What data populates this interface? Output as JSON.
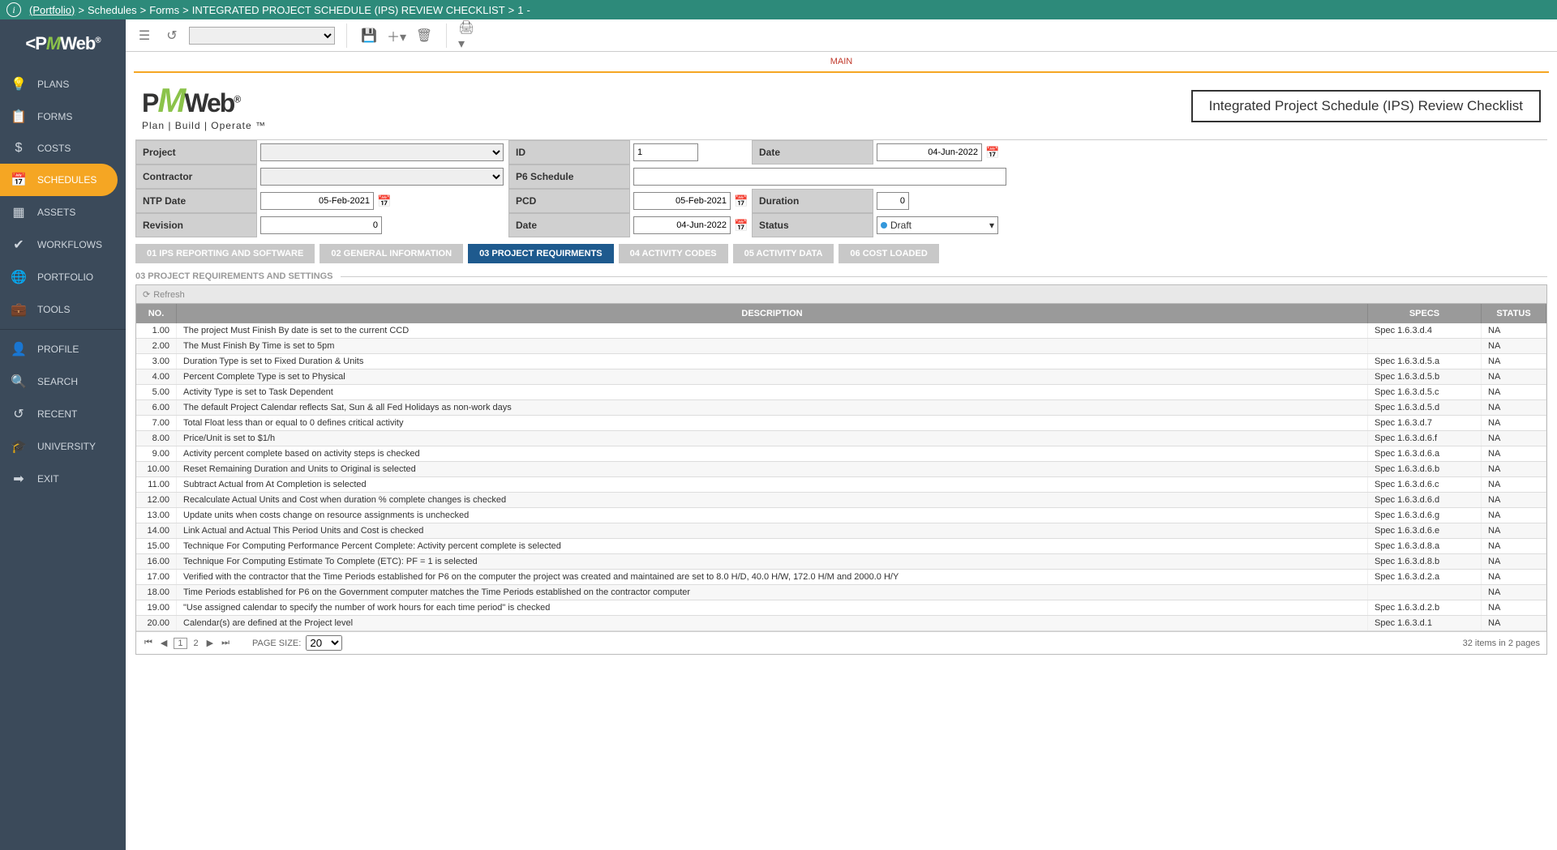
{
  "breadcrumb": {
    "portfolio": "(Portfolio)",
    "schedules": "Schedules",
    "forms": "Forms",
    "record": "INTEGRATED PROJECT SCHEDULE (IPS) REVIEW CHECKLIST",
    "num": "1",
    "dash": "-"
  },
  "sidebar": {
    "items": [
      {
        "label": "PLANS",
        "icon": "💡"
      },
      {
        "label": "FORMS",
        "icon": "📋"
      },
      {
        "label": "COSTS",
        "icon": "$"
      },
      {
        "label": "SCHEDULES",
        "icon": "📅"
      },
      {
        "label": "ASSETS",
        "icon": "▦"
      },
      {
        "label": "WORKFLOWS",
        "icon": "✔"
      },
      {
        "label": "PORTFOLIO",
        "icon": "🌐"
      },
      {
        "label": "TOOLS",
        "icon": "💼"
      }
    ],
    "lower": [
      {
        "label": "PROFILE",
        "icon": "👤"
      },
      {
        "label": "SEARCH",
        "icon": "🔍"
      },
      {
        "label": "RECENT",
        "icon": "↺"
      },
      {
        "label": "UNIVERSITY",
        "icon": "🎓"
      },
      {
        "label": "EXIT",
        "icon": "➡"
      }
    ]
  },
  "mainLabel": "MAIN",
  "docTitle": "Integrated Project Schedule (IPS) Review Checklist",
  "docLogoTag": "Plan | Build | Operate ™",
  "form": {
    "project_label": "Project",
    "id_label": "ID",
    "id_value": "1",
    "date_label": "Date",
    "date_value": "04-Jun-2022",
    "contractor_label": "Contractor",
    "p6_label": "P6 Schedule",
    "ntp_label": "NTP Date",
    "ntp_value": "05-Feb-2021",
    "pcd_label": "PCD",
    "pcd_value": "05-Feb-2021",
    "duration_label": "Duration",
    "duration_value": "0",
    "revision_label": "Revision",
    "revision_value": "0",
    "date2_label": "Date",
    "date2_value": "04-Jun-2022",
    "status_label": "Status",
    "status_value": "Draft"
  },
  "tabs": [
    "01 IPS REPORTING AND SOFTWARE",
    "02 GENERAL INFORMATION",
    "03 PROJECT REQUIRMENTS",
    "04 ACTIVITY CODES",
    "05 ACTIVITY DATA",
    "06 COST LOADED"
  ],
  "activeTab": 2,
  "sectionTitle": "03 PROJECT REQUIREMENTS AND SETTINGS",
  "refreshLabel": "Refresh",
  "gridHeaders": {
    "no": "NO.",
    "desc": "DESCRIPTION",
    "specs": "SPECS",
    "status": "STATUS"
  },
  "rows": [
    {
      "no": "1.00",
      "desc": "The project Must Finish By date is set to the current CCD",
      "specs": "Spec 1.6.3.d.4",
      "status": "NA"
    },
    {
      "no": "2.00",
      "desc": "The Must Finish By Time is set to 5pm",
      "specs": "",
      "status": "NA"
    },
    {
      "no": "3.00",
      "desc": "Duration Type is set to Fixed Duration & Units",
      "specs": "Spec 1.6.3.d.5.a",
      "status": "NA"
    },
    {
      "no": "4.00",
      "desc": "Percent Complete Type is set to Physical",
      "specs": "Spec 1.6.3.d.5.b",
      "status": "NA"
    },
    {
      "no": "5.00",
      "desc": "Activity Type is set to Task Dependent",
      "specs": "Spec 1.6.3.d.5.c",
      "status": "NA"
    },
    {
      "no": "6.00",
      "desc": "The default Project Calendar reflects Sat, Sun & all Fed Holidays as non-work days",
      "specs": "Spec 1.6.3.d.5.d",
      "status": "NA"
    },
    {
      "no": "7.00",
      "desc": "Total Float less than or equal to 0 defines critical activity",
      "specs": "Spec 1.6.3.d.7",
      "status": "NA"
    },
    {
      "no": "8.00",
      "desc": "Price/Unit is set to $1/h",
      "specs": "Spec 1.6.3.d.6.f",
      "status": "NA"
    },
    {
      "no": "9.00",
      "desc": "Activity percent complete based on activity steps is checked",
      "specs": "Spec 1.6.3.d.6.a",
      "status": "NA"
    },
    {
      "no": "10.00",
      "desc": "Reset Remaining Duration and Units to Original is selected",
      "specs": "Spec 1.6.3.d.6.b",
      "status": "NA"
    },
    {
      "no": "11.00",
      "desc": "Subtract Actual from At Completion is selected",
      "specs": "Spec 1.6.3.d.6.c",
      "status": "NA"
    },
    {
      "no": "12.00",
      "desc": "Recalculate Actual Units and Cost when duration % complete changes is checked",
      "specs": "Spec 1.6.3.d.6.d",
      "status": "NA"
    },
    {
      "no": "13.00",
      "desc": "Update units when costs change on resource assignments is unchecked",
      "specs": "Spec 1.6.3.d.6.g",
      "status": "NA"
    },
    {
      "no": "14.00",
      "desc": "Link Actual and Actual This Period Units and Cost is checked",
      "specs": "Spec 1.6.3.d.6.e",
      "status": "NA"
    },
    {
      "no": "15.00",
      "desc": "Technique For Computing Performance Percent Complete: Activity percent complete is selected",
      "specs": "Spec 1.6.3.d.8.a",
      "status": "NA"
    },
    {
      "no": "16.00",
      "desc": "Technique For Computing Estimate To Complete (ETC): PF = 1 is selected",
      "specs": "Spec 1.6.3.d.8.b",
      "status": "NA"
    },
    {
      "no": "17.00",
      "desc": "Verified with the contractor that the Time Periods established for P6 on the computer the project was created and maintained are set to 8.0 H/D, 40.0 H/W, 172.0 H/M and 2000.0 H/Y",
      "specs": "Spec 1.6.3.d.2.a",
      "status": "NA"
    },
    {
      "no": "18.00",
      "desc": "Time Periods established for P6 on the Government computer matches the Time Periods established on the contractor computer",
      "specs": "",
      "status": "NA"
    },
    {
      "no": "19.00",
      "desc": "\"Use assigned calendar to specify the number of work hours for each time period\" is checked",
      "specs": "Spec 1.6.3.d.2.b",
      "status": "NA"
    },
    {
      "no": "20.00",
      "desc": "Calendar(s) are defined at the Project level",
      "specs": "Spec 1.6.3.d.1",
      "status": "NA"
    }
  ],
  "pager": {
    "pageSizeLabel": "PAGE SIZE:",
    "pageSize": "20",
    "page1": "1",
    "page2": "2",
    "summary": "32 items in 2 pages"
  }
}
